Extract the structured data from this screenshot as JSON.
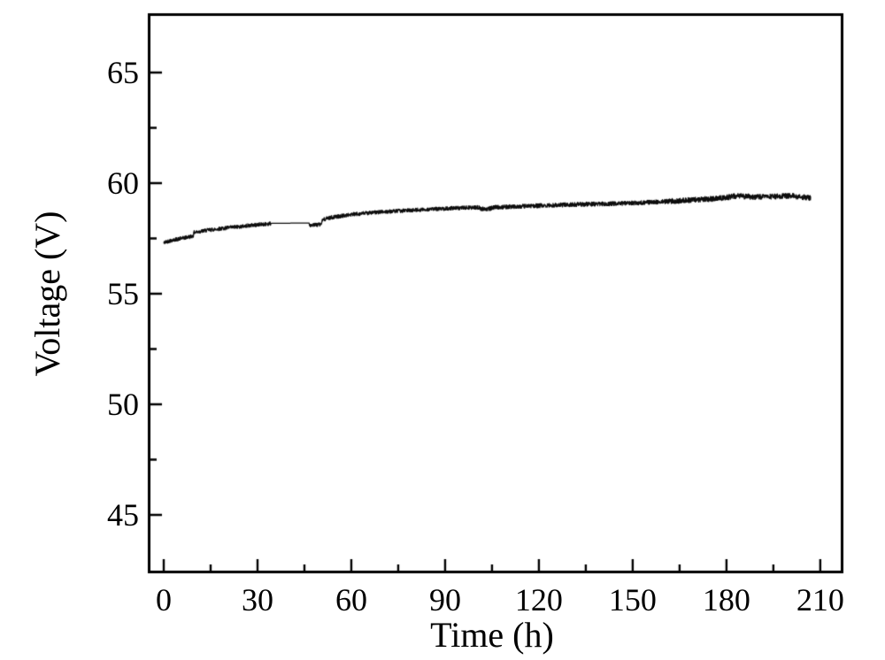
{
  "figure": {
    "background": "#ffffff",
    "frame_color": "#000000",
    "tick_color": "#000000",
    "text_color": "#000000"
  },
  "axes": {
    "x": {
      "label": "Time (h)",
      "tick_labels": [
        "0",
        "30",
        "60",
        "90",
        "120",
        "150",
        "180",
        "210"
      ]
    },
    "y": {
      "label": "Voltage (V)",
      "tick_labels": [
        "45",
        "50",
        "55",
        "60",
        "65"
      ]
    }
  },
  "chart_data": {
    "type": "line",
    "title": "",
    "xlabel": "Time (h)",
    "ylabel": "Voltage (V)",
    "xlim": [
      -5.1,
      217.4
    ],
    "ylim": [
      42.36,
      67.68
    ],
    "x_major_ticks": [
      0,
      30,
      60,
      90,
      120,
      150,
      180,
      210
    ],
    "x_minor_ticks": [
      15,
      45,
      75,
      105,
      135,
      165,
      195
    ],
    "y_major_ticks": [
      45,
      50,
      55,
      60,
      65
    ],
    "y_minor_ticks": [
      47.5,
      52.5,
      57.5,
      62.5
    ],
    "grid": false,
    "legend": false,
    "series": [
      {
        "name": "voltage",
        "color": "#0d0d0d",
        "points": [
          [
            0,
            57.3
          ],
          [
            1.5,
            57.38
          ],
          [
            3,
            57.43
          ],
          [
            5,
            57.48
          ],
          [
            7,
            57.54
          ],
          [
            9,
            57.6
          ],
          [
            9.4,
            57.61
          ],
          [
            9.7,
            57.77
          ],
          [
            11,
            57.8
          ],
          [
            13,
            57.85
          ],
          [
            15,
            57.89
          ],
          [
            18,
            57.94
          ],
          [
            21,
            57.99
          ],
          [
            24,
            58.03
          ],
          [
            27,
            58.08
          ],
          [
            30,
            58.12
          ],
          [
            33,
            58.16
          ],
          [
            34.5,
            58.18
          ],
          [
            46.5,
            58.2
          ],
          [
            46.8,
            58.1
          ],
          [
            48,
            58.11
          ],
          [
            49.5,
            58.12
          ],
          [
            50.3,
            58.13
          ],
          [
            50.8,
            58.33
          ],
          [
            52,
            58.4
          ],
          [
            54,
            58.46
          ],
          [
            57,
            58.52
          ],
          [
            60,
            58.58
          ],
          [
            63,
            58.62
          ],
          [
            66,
            58.66
          ],
          [
            70,
            58.7
          ],
          [
            75,
            58.74
          ],
          [
            80,
            58.78
          ],
          [
            85,
            58.82
          ],
          [
            90,
            58.85
          ],
          [
            95,
            58.88
          ],
          [
            100,
            58.9
          ],
          [
            100.8,
            58.89
          ],
          [
            101.5,
            58.83
          ],
          [
            104,
            58.84
          ],
          [
            105.5,
            58.9
          ],
          [
            108,
            58.92
          ],
          [
            112,
            58.94
          ],
          [
            116,
            58.96
          ],
          [
            120,
            58.98
          ],
          [
            125,
            59.0
          ],
          [
            130,
            59.03
          ],
          [
            135,
            59.05
          ],
          [
            140,
            59.06
          ],
          [
            145,
            59.08
          ],
          [
            150,
            59.1
          ],
          [
            155,
            59.13
          ],
          [
            160,
            59.17
          ],
          [
            165,
            59.2
          ],
          [
            170,
            59.25
          ],
          [
            175,
            59.29
          ],
          [
            179,
            59.33
          ],
          [
            182,
            59.4
          ],
          [
            184,
            59.42
          ],
          [
            186,
            59.4
          ],
          [
            189,
            59.38
          ],
          [
            192,
            59.39
          ],
          [
            195,
            59.4
          ],
          [
            198,
            59.41
          ],
          [
            200,
            59.42
          ],
          [
            201.5,
            59.43
          ],
          [
            202.3,
            59.37
          ],
          [
            204,
            59.36
          ],
          [
            206,
            59.35
          ],
          [
            207,
            59.31
          ]
        ],
        "noise_segments": [
          {
            "from": 0,
            "to": 34.5,
            "amp": 0.085
          },
          {
            "from": 34.5,
            "to": 46.5,
            "amp": 0.0
          },
          {
            "from": 46.5,
            "to": 100,
            "amp": 0.085
          },
          {
            "from": 100,
            "to": 160,
            "amp": 0.095
          },
          {
            "from": 160,
            "to": 207,
            "amp": 0.12
          }
        ],
        "x_start": 0,
        "x_end": 207
      }
    ]
  }
}
